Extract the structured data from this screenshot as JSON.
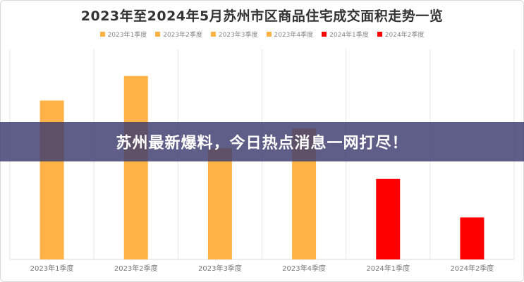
{
  "chart_data": {
    "type": "bar",
    "title": "2023年至2024年5月苏州市区商品住宅成交面积走势一览",
    "categories": [
      "2023年1季度",
      "2023年2季度",
      "2023年3季度",
      "2023年4季度",
      "2024年1季度",
      "2024年2季度"
    ],
    "values": [
      227,
      262,
      159,
      187,
      115,
      60
    ],
    "colors": [
      "#FFB347",
      "#FFB347",
      "#FFB347",
      "#FFB347",
      "#FF0000",
      "#FF0000"
    ],
    "legend": [
      "2023年1季度",
      "2023年2季度",
      "2023年3季度",
      "2023年4季度",
      "2024年1季度",
      "2024年2季度"
    ],
    "legend_position": "top-center",
    "ylim": [
      0,
      300
    ],
    "grid": "vertical",
    "xlabel": "",
    "ylabel": ""
  },
  "banner": {
    "text": "苏州最新爆料，今日热点消息一网打尽！"
  }
}
